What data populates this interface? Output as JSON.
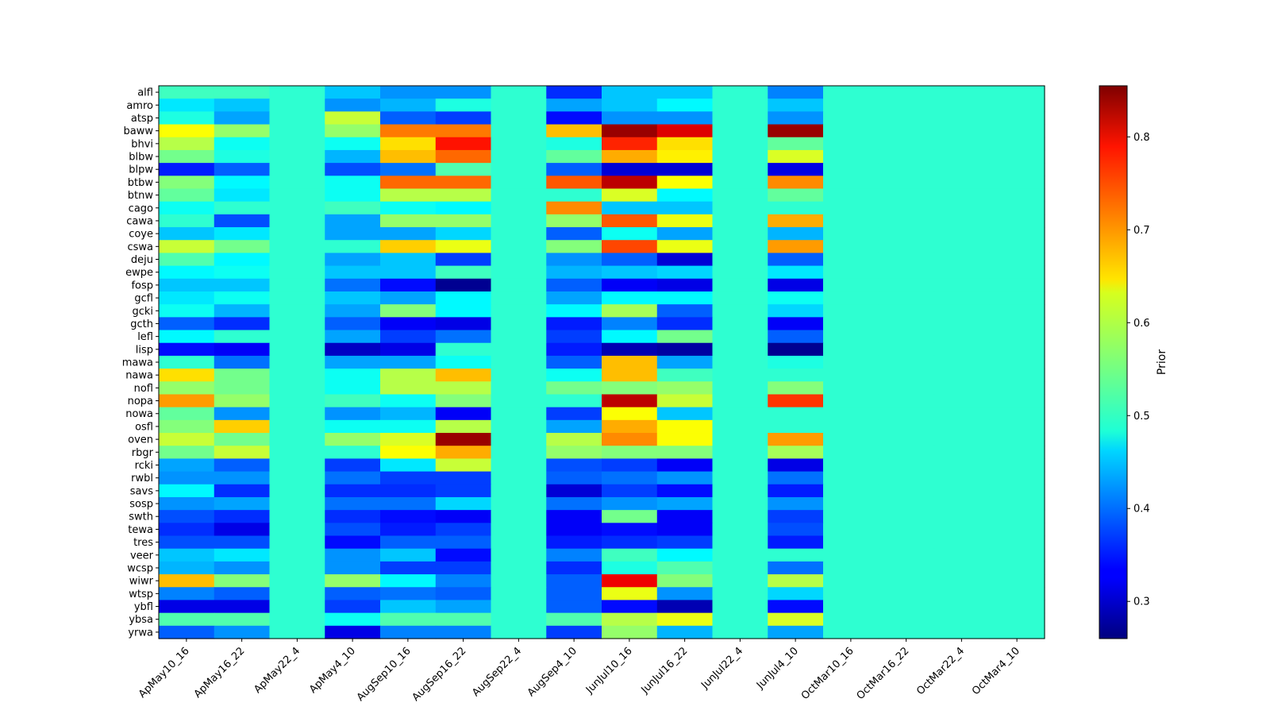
{
  "chart_data": {
    "type": "heatmap",
    "title": "",
    "xlabel": "",
    "ylabel": "",
    "colorbar_label": "Prior",
    "colormap": "jet",
    "vmin": 0.26,
    "vmax": 0.855,
    "colorbar_ticks": [
      0.3,
      0.4,
      0.5,
      0.6,
      0.7,
      0.8
    ],
    "x_categories": [
      "ApMay10_16",
      "ApMay16_22",
      "ApMay22_4",
      "ApMay4_10",
      "AugSep10_16",
      "AugSep16_22",
      "AugSep22_4",
      "AugSep4_10",
      "JunJul10_16",
      "JunJul16_22",
      "JunJul22_4",
      "JunJul4_10",
      "OctMar10_16",
      "OctMar16_22",
      "OctMar22_4",
      "OctMar4_10"
    ],
    "y_categories": [
      "alfl",
      "amro",
      "atsp",
      "baww",
      "bhvi",
      "blbw",
      "blpw",
      "btbw",
      "btnw",
      "cago",
      "cawa",
      "coye",
      "cswa",
      "deju",
      "ewpe",
      "fosp",
      "gcfl",
      "gcki",
      "gcth",
      "lefl",
      "lisp",
      "mawa",
      "nawa",
      "nofl",
      "nopa",
      "nowa",
      "osfl",
      "oven",
      "rbgr",
      "rcki",
      "rwbl",
      "savs",
      "sosp",
      "swth",
      "tewa",
      "tres",
      "veer",
      "wcsp",
      "wiwr",
      "wtsp",
      "ybfl",
      "ybsa",
      "yrwa"
    ],
    "values": [
      [
        0.52,
        0.52,
        0.51,
        0.45,
        0.42,
        0.42,
        0.51,
        0.36,
        0.45,
        0.45,
        0.51,
        0.41,
        0.51,
        0.51,
        0.51,
        0.51
      ],
      [
        0.47,
        0.45,
        0.51,
        0.42,
        0.44,
        0.5,
        0.51,
        0.43,
        0.45,
        0.48,
        0.51,
        0.45,
        0.51,
        0.51,
        0.51,
        0.51
      ],
      [
        0.5,
        0.43,
        0.51,
        0.6,
        0.39,
        0.37,
        0.51,
        0.34,
        0.42,
        0.42,
        0.51,
        0.42,
        0.51,
        0.51,
        0.51,
        0.51
      ],
      [
        0.63,
        0.57,
        0.51,
        0.57,
        0.71,
        0.71,
        0.51,
        0.67,
        0.84,
        0.8,
        0.51,
        0.84,
        0.51,
        0.51,
        0.51,
        0.51
      ],
      [
        0.59,
        0.49,
        0.51,
        0.49,
        0.65,
        0.77,
        0.51,
        0.5,
        0.76,
        0.65,
        0.51,
        0.54,
        0.51,
        0.51,
        0.51,
        0.51
      ],
      [
        0.55,
        0.5,
        0.51,
        0.44,
        0.67,
        0.72,
        0.51,
        0.54,
        0.68,
        0.64,
        0.51,
        0.61,
        0.51,
        0.51,
        0.51,
        0.51
      ],
      [
        0.35,
        0.39,
        0.51,
        0.38,
        0.4,
        0.53,
        0.51,
        0.39,
        0.31,
        0.31,
        0.51,
        0.32,
        0.51,
        0.51,
        0.51,
        0.51
      ],
      [
        0.56,
        0.48,
        0.51,
        0.49,
        0.72,
        0.72,
        0.51,
        0.73,
        0.82,
        0.63,
        0.51,
        0.7,
        0.51,
        0.51,
        0.51,
        0.51
      ],
      [
        0.54,
        0.47,
        0.51,
        0.49,
        0.59,
        0.59,
        0.51,
        0.51,
        0.61,
        0.48,
        0.51,
        0.54,
        0.51,
        0.51,
        0.51,
        0.51
      ],
      [
        0.49,
        0.51,
        0.51,
        0.52,
        0.49,
        0.48,
        0.51,
        0.7,
        0.45,
        0.45,
        0.51,
        0.51,
        0.51,
        0.51,
        0.51,
        0.51
      ],
      [
        0.51,
        0.38,
        0.51,
        0.43,
        0.57,
        0.57,
        0.51,
        0.57,
        0.73,
        0.62,
        0.51,
        0.68,
        0.51,
        0.51,
        0.51,
        0.51
      ],
      [
        0.45,
        0.47,
        0.51,
        0.43,
        0.43,
        0.46,
        0.51,
        0.39,
        0.49,
        0.43,
        0.51,
        0.44,
        0.51,
        0.51,
        0.51,
        0.51
      ],
      [
        0.6,
        0.55,
        0.51,
        0.51,
        0.66,
        0.62,
        0.51,
        0.56,
        0.74,
        0.62,
        0.51,
        0.69,
        0.51,
        0.51,
        0.51,
        0.51
      ],
      [
        0.53,
        0.48,
        0.51,
        0.43,
        0.45,
        0.37,
        0.51,
        0.42,
        0.39,
        0.31,
        0.51,
        0.39,
        0.51,
        0.51,
        0.51,
        0.51
      ],
      [
        0.48,
        0.49,
        0.51,
        0.45,
        0.45,
        0.52,
        0.51,
        0.44,
        0.45,
        0.46,
        0.51,
        0.47,
        0.51,
        0.51,
        0.51,
        0.51
      ],
      [
        0.45,
        0.45,
        0.51,
        0.4,
        0.34,
        0.27,
        0.51,
        0.39,
        0.33,
        0.32,
        0.51,
        0.32,
        0.51,
        0.51,
        0.51,
        0.51
      ],
      [
        0.47,
        0.49,
        0.51,
        0.45,
        0.43,
        0.48,
        0.51,
        0.43,
        0.48,
        0.48,
        0.51,
        0.49,
        0.51,
        0.51,
        0.51,
        0.51
      ],
      [
        0.49,
        0.44,
        0.51,
        0.43,
        0.56,
        0.48,
        0.51,
        0.48,
        0.58,
        0.39,
        0.51,
        0.46,
        0.51,
        0.51,
        0.51,
        0.51
      ],
      [
        0.39,
        0.36,
        0.51,
        0.39,
        0.33,
        0.32,
        0.51,
        0.35,
        0.41,
        0.36,
        0.51,
        0.33,
        0.51,
        0.51,
        0.51,
        0.51
      ],
      [
        0.48,
        0.51,
        0.51,
        0.43,
        0.37,
        0.4,
        0.51,
        0.37,
        0.48,
        0.55,
        0.51,
        0.39,
        0.51,
        0.51,
        0.51,
        0.51
      ],
      [
        0.34,
        0.33,
        0.51,
        0.3,
        0.32,
        0.51,
        0.51,
        0.35,
        0.29,
        0.28,
        0.51,
        0.27,
        0.51,
        0.51,
        0.51,
        0.51
      ],
      [
        0.51,
        0.4,
        0.51,
        0.43,
        0.43,
        0.49,
        0.51,
        0.39,
        0.67,
        0.43,
        0.51,
        0.5,
        0.51,
        0.51,
        0.51,
        0.51
      ],
      [
        0.65,
        0.55,
        0.51,
        0.49,
        0.59,
        0.67,
        0.51,
        0.49,
        0.67,
        0.52,
        0.51,
        0.51,
        0.51,
        0.51,
        0.51,
        0.51
      ],
      [
        0.57,
        0.55,
        0.51,
        0.49,
        0.59,
        0.59,
        0.51,
        0.55,
        0.56,
        0.57,
        0.51,
        0.56,
        0.51,
        0.51,
        0.51,
        0.51
      ],
      [
        0.69,
        0.57,
        0.51,
        0.52,
        0.49,
        0.56,
        0.51,
        0.51,
        0.82,
        0.6,
        0.51,
        0.75,
        0.51,
        0.51,
        0.51,
        0.51
      ],
      [
        0.54,
        0.42,
        0.51,
        0.42,
        0.44,
        0.33,
        0.51,
        0.37,
        0.63,
        0.45,
        0.51,
        0.51,
        0.51,
        0.51,
        0.51,
        0.51
      ],
      [
        0.56,
        0.66,
        0.51,
        0.49,
        0.49,
        0.59,
        0.51,
        0.43,
        0.68,
        0.63,
        0.51,
        0.51,
        0.51,
        0.51,
        0.51,
        0.51
      ],
      [
        0.6,
        0.55,
        0.51,
        0.57,
        0.61,
        0.84,
        0.51,
        0.59,
        0.7,
        0.63,
        0.51,
        0.69,
        0.51,
        0.51,
        0.51,
        0.51
      ],
      [
        0.55,
        0.6,
        0.51,
        0.51,
        0.63,
        0.68,
        0.51,
        0.57,
        0.56,
        0.56,
        0.51,
        0.58,
        0.51,
        0.51,
        0.51,
        0.51
      ],
      [
        0.43,
        0.39,
        0.51,
        0.37,
        0.47,
        0.6,
        0.51,
        0.38,
        0.37,
        0.33,
        0.51,
        0.32,
        0.51,
        0.51,
        0.51,
        0.51
      ],
      [
        0.42,
        0.42,
        0.51,
        0.4,
        0.37,
        0.37,
        0.51,
        0.39,
        0.4,
        0.42,
        0.51,
        0.4,
        0.51,
        0.51,
        0.51,
        0.51
      ],
      [
        0.48,
        0.36,
        0.51,
        0.36,
        0.36,
        0.37,
        0.51,
        0.31,
        0.37,
        0.34,
        0.51,
        0.35,
        0.51,
        0.51,
        0.51,
        0.51
      ],
      [
        0.42,
        0.43,
        0.51,
        0.4,
        0.4,
        0.46,
        0.51,
        0.4,
        0.42,
        0.43,
        0.51,
        0.42,
        0.51,
        0.51,
        0.51,
        0.51
      ],
      [
        0.38,
        0.36,
        0.51,
        0.36,
        0.34,
        0.33,
        0.51,
        0.33,
        0.55,
        0.33,
        0.51,
        0.37,
        0.51,
        0.51,
        0.51,
        0.51
      ],
      [
        0.36,
        0.32,
        0.51,
        0.38,
        0.35,
        0.37,
        0.51,
        0.33,
        0.34,
        0.33,
        0.51,
        0.38,
        0.51,
        0.51,
        0.51,
        0.51
      ],
      [
        0.38,
        0.38,
        0.51,
        0.34,
        0.39,
        0.39,
        0.51,
        0.35,
        0.36,
        0.37,
        0.51,
        0.35,
        0.51,
        0.51,
        0.51,
        0.51
      ],
      [
        0.45,
        0.47,
        0.51,
        0.42,
        0.45,
        0.34,
        0.51,
        0.41,
        0.52,
        0.48,
        0.51,
        0.51,
        0.51,
        0.51,
        0.51,
        0.51
      ],
      [
        0.44,
        0.42,
        0.51,
        0.42,
        0.37,
        0.37,
        0.51,
        0.36,
        0.5,
        0.53,
        0.51,
        0.4,
        0.51,
        0.51,
        0.51,
        0.51
      ],
      [
        0.67,
        0.56,
        0.51,
        0.57,
        0.48,
        0.41,
        0.51,
        0.39,
        0.79,
        0.56,
        0.51,
        0.59,
        0.51,
        0.51,
        0.51,
        0.51
      ],
      [
        0.41,
        0.39,
        0.51,
        0.39,
        0.4,
        0.39,
        0.51,
        0.39,
        0.62,
        0.42,
        0.51,
        0.46,
        0.51,
        0.51,
        0.51,
        0.51
      ],
      [
        0.32,
        0.32,
        0.51,
        0.37,
        0.45,
        0.43,
        0.51,
        0.39,
        0.34,
        0.29,
        0.51,
        0.34,
        0.51,
        0.51,
        0.51,
        0.51
      ],
      [
        0.53,
        0.53,
        0.51,
        0.49,
        0.53,
        0.53,
        0.51,
        0.53,
        0.59,
        0.62,
        0.51,
        0.61,
        0.51,
        0.51,
        0.51,
        0.51
      ],
      [
        0.39,
        0.42,
        0.51,
        0.32,
        0.41,
        0.41,
        0.51,
        0.37,
        0.57,
        0.44,
        0.51,
        0.43,
        0.51,
        0.51,
        0.51,
        0.51
      ]
    ]
  }
}
